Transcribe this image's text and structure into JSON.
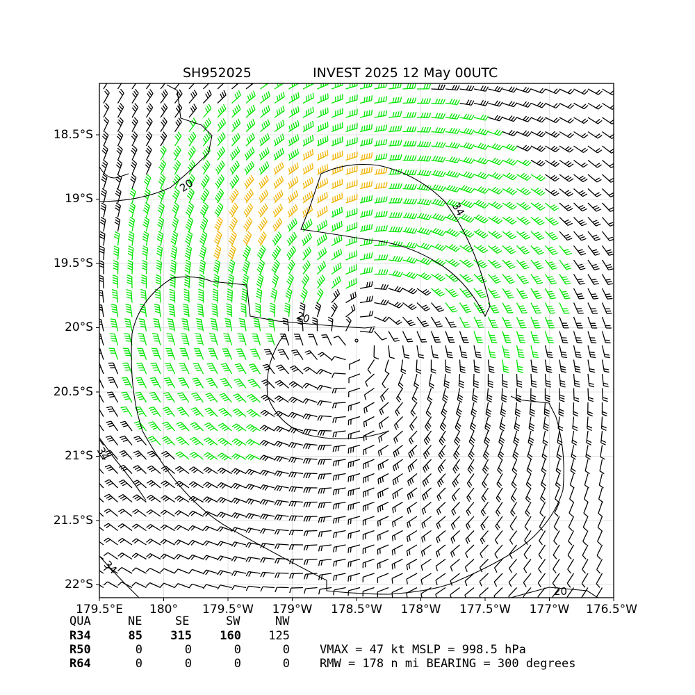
{
  "title": {
    "storm_id": "SH952025",
    "storm_info": "INVEST 2025 12 May 00UTC"
  },
  "axes": {
    "x_ticks": [
      "179.5°E",
      "180°",
      "179.5°W",
      "179°W",
      "178.5°W",
      "178°W",
      "177.5°W",
      "177°W",
      "176.5°W"
    ],
    "y_ticks": [
      "18.5°S",
      "19°S",
      "19.5°S",
      "20°S",
      "20.5°S",
      "21°S",
      "21.5°S",
      "22°S"
    ],
    "lon_range": [
      179.5,
      183.5
    ],
    "lat_range": [
      -22.1,
      -18.1
    ],
    "grid": true
  },
  "contours": {
    "labels": [
      "20",
      "20",
      "34",
      "34",
      "34",
      "20"
    ],
    "levels_kt": [
      20,
      34,
      50
    ],
    "colors": {
      "lt34": "#000000",
      "34to50": "#00e600",
      "ge50": "#f0b400",
      "contour": "#000000"
    }
  },
  "storm": {
    "center_lon": 181.5,
    "center_lat": -20.1,
    "vmax_kt": 47,
    "rmw_nmi": 178
  },
  "wind_radii": {
    "header": [
      "QUA",
      "NE",
      "SE",
      "SW",
      "NW"
    ],
    "rows": [
      {
        "label": "R34",
        "values": [
          "85",
          "315",
          "160",
          "125"
        ]
      },
      {
        "label": "R50",
        "values": [
          "0",
          "0",
          "0",
          "0"
        ]
      },
      {
        "label": "R64",
        "values": [
          "0",
          "0",
          "0",
          "0"
        ]
      }
    ]
  },
  "summary": {
    "line1": "VMAX =  47 kt MSLP = 998.5 hPa",
    "line2": "RMW = 178 n mi BEARING = 300 degrees"
  }
}
